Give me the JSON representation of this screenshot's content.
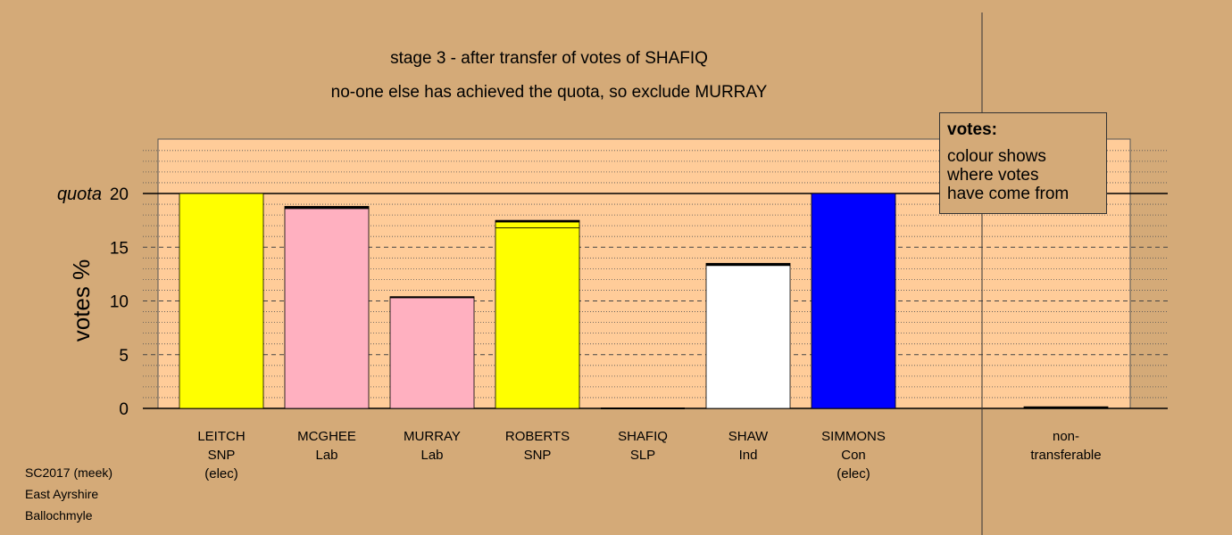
{
  "title_lines": [
    "stage 3 - after transfer of votes of SHAFIQ",
    "no-one else has achieved the quota, so exclude MURRAY"
  ],
  "legend": {
    "heading": "votes:",
    "lines": [
      "colour shows",
      "where votes",
      "have come from"
    ]
  },
  "footer": [
    "SC2017 (meek)",
    "East Ayrshire",
    "Ballochmyle"
  ],
  "chart_data": {
    "type": "bar",
    "ylabel": "votes %",
    "ylim": [
      0,
      24.5
    ],
    "yticks": [
      0,
      5,
      10,
      15,
      20
    ],
    "quota": 20,
    "quota_label": "quota",
    "categories": [
      {
        "lines": [
          "LEITCH",
          "SNP",
          "(elec)"
        ],
        "segments": [
          {
            "value": 20.0,
            "color": "#ffff00"
          }
        ]
      },
      {
        "lines": [
          "MCGHEE",
          "Lab"
        ],
        "segments": [
          {
            "value": 18.6,
            "color": "#ffb0c0"
          },
          {
            "value": 0.2,
            "color": "#000000"
          }
        ]
      },
      {
        "lines": [
          "MURRAY",
          "Lab"
        ],
        "segments": [
          {
            "value": 10.3,
            "color": "#ffb0c0"
          },
          {
            "value": 0.1,
            "color": "#000000"
          }
        ]
      },
      {
        "lines": [
          "ROBERTS",
          "SNP"
        ],
        "segments": [
          {
            "value": 16.8,
            "color": "#ffff00"
          },
          {
            "value": 0.55,
            "color": "#ffff00"
          },
          {
            "value": 0.15,
            "color": "#000000"
          }
        ]
      },
      {
        "lines": [
          "SHAFIQ",
          "SLP"
        ],
        "segments": []
      },
      {
        "lines": [
          "SHAW",
          "Ind"
        ],
        "segments": [
          {
            "value": 13.3,
            "color": "#ffffff"
          },
          {
            "value": 0.2,
            "color": "#000000"
          }
        ]
      },
      {
        "lines": [
          "SIMMONS",
          "Con",
          "(elec)"
        ],
        "segments": [
          {
            "value": 20.0,
            "color": "#0000ff"
          }
        ]
      }
    ],
    "nontransferable": {
      "lines": [
        "non-",
        "transferable"
      ],
      "value": 0.15,
      "color": "#000000"
    }
  }
}
